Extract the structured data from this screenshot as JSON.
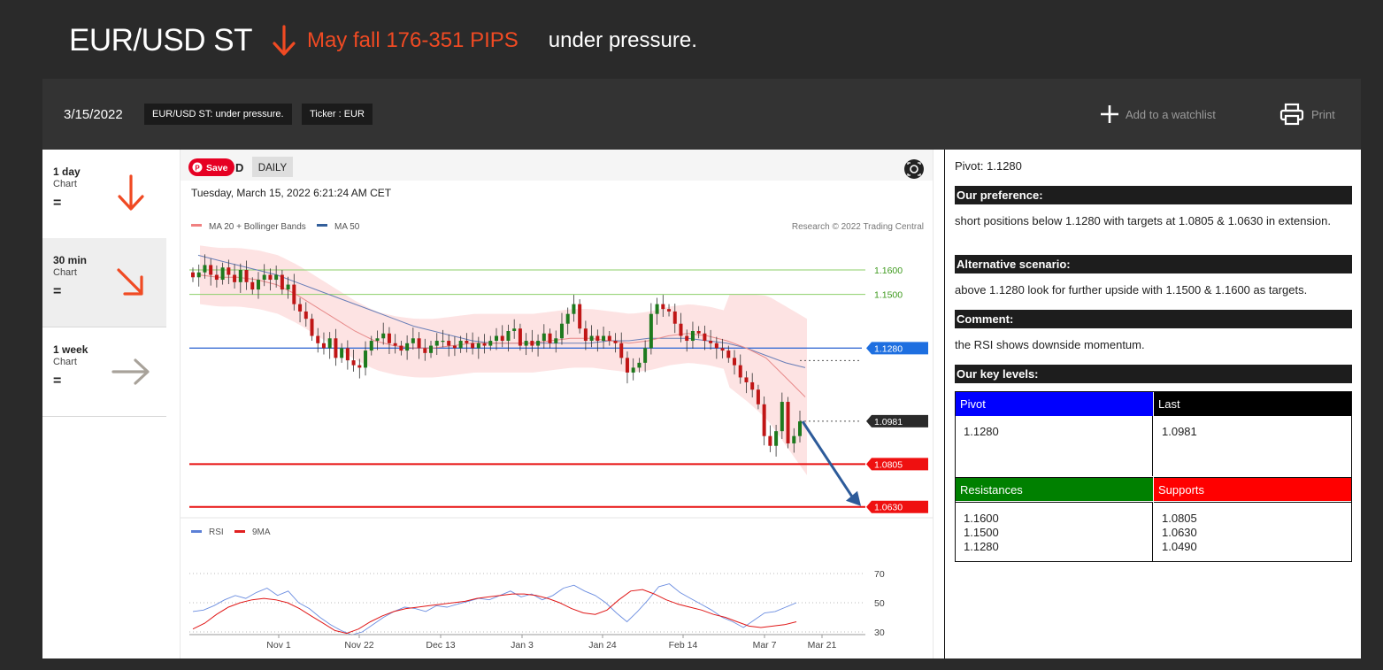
{
  "headline": {
    "title": "EUR/USD ST",
    "direction_icon": "arrow-down-icon",
    "fall_text": "May fall 176-351 PIPS",
    "subtitle": "under pressure."
  },
  "colors": {
    "accent": "#f04a23",
    "pivot": "#0000ff",
    "last": "#000000",
    "resistances": "#008000",
    "supports": "#ff0000"
  },
  "toolbar": {
    "date": "3/15/2022",
    "tag_title": "EUR/USD ST: under pressure.",
    "tag_ticker": "Ticker : EUR",
    "watchlist_label": "Add to a watchlist",
    "print_label": "Print"
  },
  "timeframes": [
    {
      "name": "1 day",
      "sub": "Chart",
      "value": "=",
      "icon": "arrow-down-icon"
    },
    {
      "name": "30 min",
      "sub": "Chart",
      "value": "=",
      "icon": "arrow-down-right-icon"
    },
    {
      "name": "1 week",
      "sub": "Chart",
      "value": "=",
      "icon": "arrow-right-icon"
    }
  ],
  "chart": {
    "save_label": "Save",
    "symbol_tail": "D",
    "period": "DAILY",
    "timestamp": "Tuesday, March 15, 2022 6:21:24 AM CET",
    "legend_ma": "MA 20 + Bollinger Bands",
    "legend_ma50": "MA 50",
    "credit": "Research © 2022 Trading Central",
    "rsi_legend": "RSI",
    "rsi_ma_legend": "9MA"
  },
  "chart_data": {
    "type": "candlestick",
    "x_ticks": [
      "Nov 1",
      "Nov 22",
      "Dec 13",
      "Jan 3",
      "Jan 24",
      "Feb 14",
      "Mar 7",
      "Mar 21"
    ],
    "levels": [
      {
        "label": "1.1600",
        "value": 1.16,
        "kind": "resistance"
      },
      {
        "label": "1.1500",
        "value": 1.15,
        "kind": "resistance"
      },
      {
        "label": "1.1280",
        "value": 1.128,
        "kind": "pivot"
      },
      {
        "label": "1.0981",
        "value": 1.0981,
        "kind": "last"
      },
      {
        "label": "1.0805",
        "value": 1.0805,
        "kind": "target"
      },
      {
        "label": "1.0630",
        "value": 1.063,
        "kind": "target"
      }
    ],
    "close_path": [
      1.157,
      1.159,
      1.162,
      1.158,
      1.156,
      1.161,
      1.158,
      1.155,
      1.16,
      1.155,
      1.152,
      1.156,
      1.158,
      1.156,
      1.158,
      1.152,
      1.154,
      1.146,
      1.143,
      1.14,
      1.133,
      1.13,
      1.128,
      1.132,
      1.124,
      1.128,
      1.123,
      1.121,
      1.12,
      1.127,
      1.131,
      1.132,
      1.134,
      1.13,
      1.129,
      1.127,
      1.13,
      1.132,
      1.128,
      1.126,
      1.129,
      1.131,
      1.131,
      1.129,
      1.128,
      1.131,
      1.13,
      1.128,
      1.13,
      1.129,
      1.131,
      1.133,
      1.131,
      1.135,
      1.136,
      1.129,
      1.131,
      1.129,
      1.131,
      1.134,
      1.13,
      1.132,
      1.138,
      1.142,
      1.146,
      1.136,
      1.131,
      1.133,
      1.131,
      1.133,
      1.131,
      1.13,
      1.124,
      1.118,
      1.12,
      1.122,
      1.128,
      1.142,
      1.146,
      1.144,
      1.143,
      1.138,
      1.133,
      1.131,
      1.135,
      1.134,
      1.131,
      1.13,
      1.128,
      1.127,
      1.124,
      1.121,
      1.116,
      1.114,
      1.111,
      1.105,
      1.092,
      1.088,
      1.094,
      1.106,
      1.089,
      1.092,
      1.098
    ],
    "ma20_path": [
      1.158,
      1.157,
      1.157,
      1.156,
      1.154,
      1.15,
      1.145,
      1.14,
      1.135,
      1.131,
      1.129,
      1.128,
      1.128,
      1.129,
      1.13,
      1.13,
      1.13,
      1.13,
      1.131,
      1.132,
      1.132,
      1.131,
      1.13,
      1.131,
      1.133,
      1.134,
      1.133,
      1.131,
      1.128,
      1.124,
      1.116,
      1.108
    ],
    "ma50_path": [
      1.166,
      1.164,
      1.162,
      1.16,
      1.158,
      1.155,
      1.152,
      1.149,
      1.146,
      1.143,
      1.14,
      1.137,
      1.135,
      1.133,
      1.131,
      1.13,
      1.13,
      1.13,
      1.13,
      1.13,
      1.13,
      1.131,
      1.131,
      1.132,
      1.132,
      1.132,
      1.131,
      1.13,
      1.128,
      1.125,
      1.122,
      1.12
    ],
    "rsi_ticks": [
      "70",
      "50",
      "30"
    ],
    "rsi_path": [
      44,
      45,
      48,
      52,
      55,
      53,
      57,
      60,
      55,
      58,
      50,
      46,
      40,
      35,
      31,
      28,
      30,
      35,
      40,
      44,
      47,
      46,
      44,
      48,
      47,
      49,
      51,
      53,
      52,
      55,
      58,
      54,
      56,
      52,
      55,
      60,
      62,
      58,
      55,
      50,
      43,
      37,
      44,
      52,
      61,
      63,
      57,
      53,
      49,
      45,
      40,
      37,
      33,
      38,
      43,
      44,
      47,
      50
    ],
    "rsi_ma_path": [
      32,
      36,
      42,
      47,
      50,
      52,
      53,
      52,
      50,
      46,
      41,
      36,
      31,
      29,
      32,
      37,
      41,
      44,
      46,
      47,
      48,
      49,
      50,
      51,
      53,
      54,
      55,
      56,
      56,
      55,
      53,
      50,
      46,
      43,
      42,
      45,
      52,
      58,
      59,
      56,
      52,
      49,
      47,
      45,
      42,
      40,
      37,
      34,
      33,
      34,
      35,
      37
    ]
  },
  "analysis": {
    "pivot_line": "Pivot: 1.1280",
    "pref_title": "Our preference:",
    "pref_text": "short positions below 1.1280 with targets at 1.0805 & 1.0630 in extension.",
    "alt_title": "Alternative scenario:",
    "alt_text": "above 1.1280 look for further upside with 1.1500 & 1.1600 as targets.",
    "comment_title": "Comment:",
    "comment_text": "the RSI shows downside momentum.",
    "key_title": "Our key levels:",
    "key_levels": {
      "pivot_label": "Pivot",
      "pivot_value": "1.1280",
      "last_label": "Last",
      "last_value": "1.0981",
      "res_label": "Resistances",
      "res_values": [
        "1.1600",
        "1.1500",
        "1.1280"
      ],
      "sup_label": "Supports",
      "sup_values": [
        "1.0805",
        "1.0630",
        "1.0490"
      ]
    }
  }
}
